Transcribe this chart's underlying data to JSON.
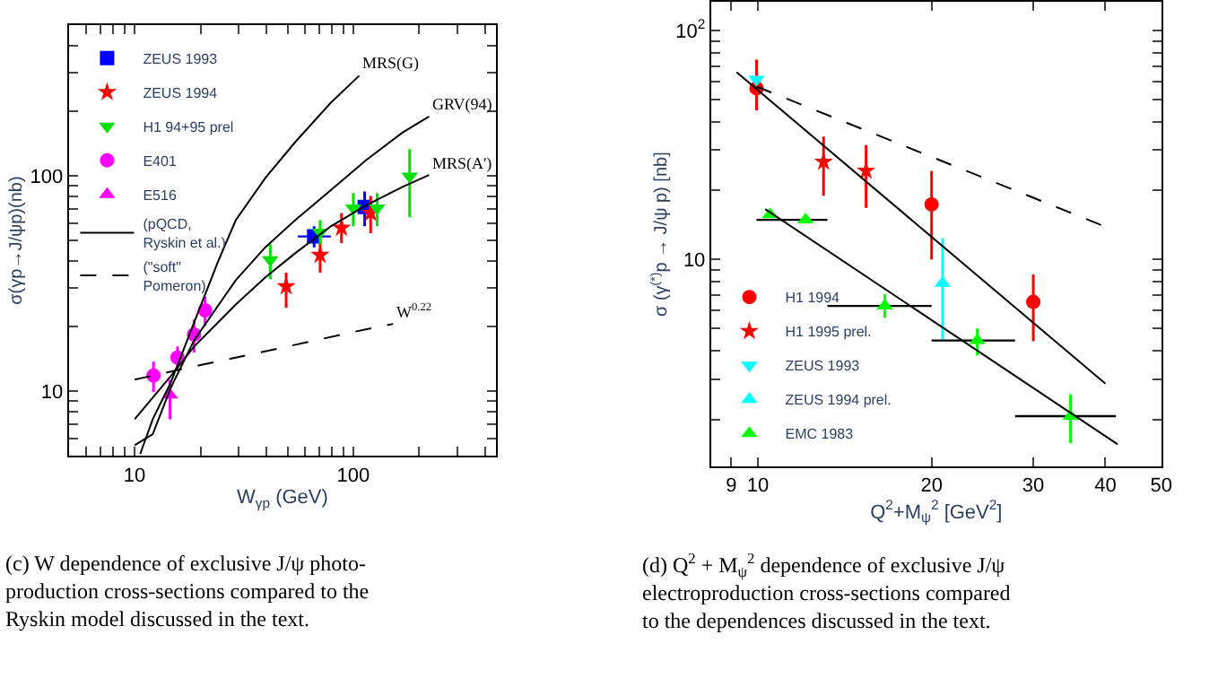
{
  "chart_data": [
    {
      "type": "scatter",
      "xlabel": "W$_{γp}$ (GeV)",
      "ylabel": "σ(γp→J/ψp)(nb)",
      "log": "xy",
      "legend": "top left",
      "xlim": [
        5,
        450
      ],
      "ylim": [
        5,
        500
      ],
      "xticks": [
        {
          "value": 5,
          "label": null
        },
        {
          "value": 6,
          "label": null
        },
        {
          "value": 7,
          "label": null
        },
        {
          "value": 8,
          "label": null
        },
        {
          "value": 9,
          "label": null
        },
        10,
        {
          "value": 20,
          "label": null
        },
        {
          "value": 30,
          "label": null
        },
        {
          "value": 40,
          "label": null
        },
        {
          "value": 50,
          "label": null
        },
        {
          "value": 60,
          "label": null
        },
        {
          "value": 70,
          "label": null
        },
        {
          "value": 80,
          "label": null
        },
        {
          "value": 90,
          "label": null
        },
        100,
        {
          "value": 200,
          "label": null
        },
        {
          "value": 300,
          "label": null
        },
        {
          "value": 400,
          "label": null
        }
      ],
      "yticks": [
        {
          "value": 6,
          "label": null
        },
        {
          "value": 7,
          "label": null
        },
        {
          "value": 8,
          "label": null
        },
        {
          "value": 9,
          "label": null
        },
        10,
        {
          "value": 20,
          "label": null
        },
        {
          "value": 30,
          "label": null
        },
        {
          "value": 40,
          "label": null
        },
        {
          "value": 50,
          "label": null
        },
        {
          "value": 60,
          "label": null
        },
        {
          "value": 70,
          "label": null
        },
        {
          "value": 80,
          "label": null
        },
        {
          "value": 90,
          "label": null
        },
        100,
        {
          "value": 200,
          "label": null
        },
        {
          "value": 300,
          "label": null
        },
        {
          "value": 400,
          "label": null
        }
      ],
      "series": [
        {
          "name": "ZEUS 1993",
          "color": "#0000ff",
          "marker": "square",
          "x": [
            66.2,
            112.7
          ],
          "values": [
            52.2,
            71.6
          ],
          "errors": [
            [
              46.5,
              58.2
            ],
            [
              58.2,
              84.5
            ]
          ],
          "xerrors": [
            [
              55.8,
              78.9
            ],
            null
          ]
        },
        {
          "name": "ZEUS 1994",
          "color": "#ff0000",
          "marker": "star",
          "x": [
            49.3,
            70.5,
            88.3,
            120
          ],
          "values": [
            30.6,
            42.8,
            57.2,
            67.1
          ],
          "errors": [
            [
              24.4,
              35.4
            ],
            [
              35.4,
              49.6
            ],
            [
              48.6,
              67.1
            ],
            [
              54.0,
              80.4
            ]
          ]
        },
        {
          "name": "H1 94+95 prel",
          "color": "#00e000",
          "marker": "triangle-down",
          "x": [
            41.7,
            70.5,
            100,
            128.5,
            181
          ],
          "values": [
            40.6,
            54.6,
            70.6,
            70.6,
            99.4
          ],
          "errors": [
            [
              33.1,
              48.1
            ],
            [
              48.1,
              62.1
            ],
            [
              58.2,
              83.0
            ],
            [
              58.2,
              83.0
            ],
            [
              64.1,
              132.7
            ]
          ]
        },
        {
          "name": "E401",
          "color": "#ff00ff",
          "marker": "circle",
          "x": [
            12.2,
            15.7,
            18.7,
            21.0
          ],
          "values": [
            11.8,
            14.3,
            18.3,
            23.7
          ],
          "errors": [
            [
              9.9,
              13.7
            ],
            [
              12.6,
              16.1
            ],
            [
              15.1,
              21.5
            ],
            [
              20.1,
              27.5
            ]
          ]
        },
        {
          "name": "E516",
          "color": "#ff00ff",
          "marker": "triangle",
          "x": [
            14.5
          ],
          "values": [
            9.6
          ],
          "errors": [
            [
              7.4,
              11.3
            ]
          ]
        },
        {
          "name": "(pQCD,\nRyskin et al.)",
          "type": "line",
          "line_style": "solid",
          "color": "#000000",
          "x": [
            10.6,
            12.1,
            14.6,
            18.7,
            24.0,
            29.0,
            39.6,
            54.2,
            78.9,
            106.4
          ],
          "values": [
            5.1,
            7.4,
            10.9,
            20.8,
            39.6,
            62.1,
            97.5,
            143,
            218,
            291
          ]
        },
        {
          "type": "line",
          "line_style": "solid",
          "color": "#000000",
          "x": [
            10,
            12.1,
            14.6,
            18.7,
            29.0,
            39.6,
            54.2,
            78.9,
            114.5,
            167,
            222
          ],
          "values": [
            5.6,
            6.3,
            10.3,
            17.2,
            32.7,
            46.5,
            62.1,
            85.7,
            118,
            158,
            188
          ]
        },
        {
          "type": "line",
          "line_style": "solid",
          "color": "#000000",
          "x": [
            10,
            14.6,
            18.7,
            29.0,
            39.6,
            54.2,
            78.9,
            114.5,
            167,
            222
          ],
          "values": [
            7.4,
            11.7,
            16.1,
            25.2,
            33.7,
            43.6,
            58.2,
            72.9,
            88.5,
            100.6
          ]
        },
        {
          "name": "(\"soft\"\nPomeron)",
          "type": "line",
          "line_style": "dashed",
          "color": "#000000",
          "x": [
            10,
            20,
            50,
            100,
            152
          ],
          "values": [
            11.3,
            13.2,
            16.1,
            18.8,
            20.5
          ]
        }
      ],
      "annotations": [
        {
          "text": "MRS(G)",
          "x": 106.4,
          "y": 291
        },
        {
          "text": "GRV(94)",
          "x": 222,
          "y": 188
        },
        {
          "text": "MRS(A')",
          "x": 222,
          "y": 100.6
        },
        {
          "text": "W$^{0.22}$",
          "x": 152,
          "y": 20.4
        },
        "(c) W dependence of exclusive J/ψ photo-\nproduction cross-sections compared to the\nRyskin model discussed in the text."
      ]
    },
    {
      "type": "scatter",
      "xlabel": "Q$^{2}$+M$_{ψ}$$^{2}$ [GeV$^{2}$]",
      "ylabel": "σ (γ$^{(*)}$p → J/ψ p) [nb]",
      "log": "xy",
      "legend": "bottom left",
      "xlim": [
        8.3,
        50
      ],
      "ylim": [
        1.25,
        133
      ],
      "xticks": [
        9,
        10,
        20,
        30,
        40,
        50
      ],
      "yticks": [
        {
          "value": 2,
          "label": null
        },
        {
          "value": 3,
          "label": null
        },
        {
          "value": 4,
          "label": null
        },
        {
          "value": 5,
          "label": null
        },
        {
          "value": 6,
          "label": null
        },
        {
          "value": 7,
          "label": null
        },
        {
          "value": 8,
          "label": null
        },
        {
          "value": 9,
          "label": null
        },
        10,
        {
          "value": 20,
          "label": null
        },
        {
          "value": 30,
          "label": null
        },
        {
          "value": 40,
          "label": null
        },
        {
          "value": 50,
          "label": null
        },
        {
          "value": 60,
          "label": null
        },
        {
          "value": 70,
          "label": null
        },
        {
          "value": 80,
          "label": null
        },
        {
          "value": 90,
          "label": null
        },
        {
          "value": 100,
          "label": "10$^{2}$"
        }
      ],
      "series": [
        {
          "name": "H1 1994",
          "color": "#ff0000",
          "marker": "circle",
          "x": [
            9.95,
            20.0,
            30.0
          ],
          "values": [
            55.9,
            17.4,
            6.53
          ],
          "errors": [
            [
              44.8,
              74.5
            ],
            [
              10,
              24.4
            ],
            [
              4.4,
              8.6
            ]
          ]
        },
        {
          "name": "H1 1995 prel.",
          "color": "#ff0000",
          "marker": "star",
          "x": [
            13.0,
            15.4
          ],
          "values": [
            26.7,
            24.4
          ],
          "errors": [
            [
              19.0,
              34.4
            ],
            [
              16.8,
              31.6
            ]
          ]
        },
        {
          "name": "ZEUS 1993",
          "color": "#00ffff",
          "marker": "triangle-down",
          "x": [
            9.95
          ],
          "values": [
            61.1
          ]
        },
        {
          "name": "ZEUS 1994 prel.",
          "color": "#00ffff",
          "marker": "triangle",
          "x": [
            20.9
          ],
          "values": [
            7.87
          ],
          "errors": [
            [
              4.37,
              12.4
            ]
          ]
        },
        {
          "name": "EMC 1983",
          "color": "#00ff00",
          "marker": "triangle",
          "x": [
            10.5,
            12.1,
            16.6,
            24.0,
            34.8
          ],
          "values": [
            15.7,
            14.9,
            6.27,
            4.43,
            2.07
          ],
          "errors": [
            null,
            null,
            [
              5.56,
              7.06
            ],
            [
              3.81,
              5.0
            ],
            [
              1.58,
              2.58
            ]
          ],
          "xerrors": [
            null,
            [
              9.95,
              13.2
            ],
            [
              13.2,
              20.0
            ],
            [
              20.0,
              27.9
            ],
            [
              27.9,
              41.7
            ]
          ]
        },
        {
          "type": "line",
          "line_style": "solid",
          "color": "#000000",
          "x": [
            9.19,
            40.0
          ],
          "values": [
            65.7,
            2.87
          ]
        },
        {
          "type": "line",
          "line_style": "solid",
          "color": "#000000",
          "x": [
            10.3,
            42.0
          ],
          "values": [
            16.6,
            1.56
          ]
        },
        {
          "type": "line",
          "line_style": "dashed",
          "color": "#000000",
          "x": [
            9.95,
            40.0
          ],
          "values": [
            56.9,
            13.9
          ]
        }
      ],
      "annotations": [
        "(d) Q$^{2}$ + M$_{ψ}$$^{2}$ dependence of exclusive J/ψ\nelectroproduction cross-sections compared\nto the dependences discussed in the text."
      ]
    }
  ]
}
